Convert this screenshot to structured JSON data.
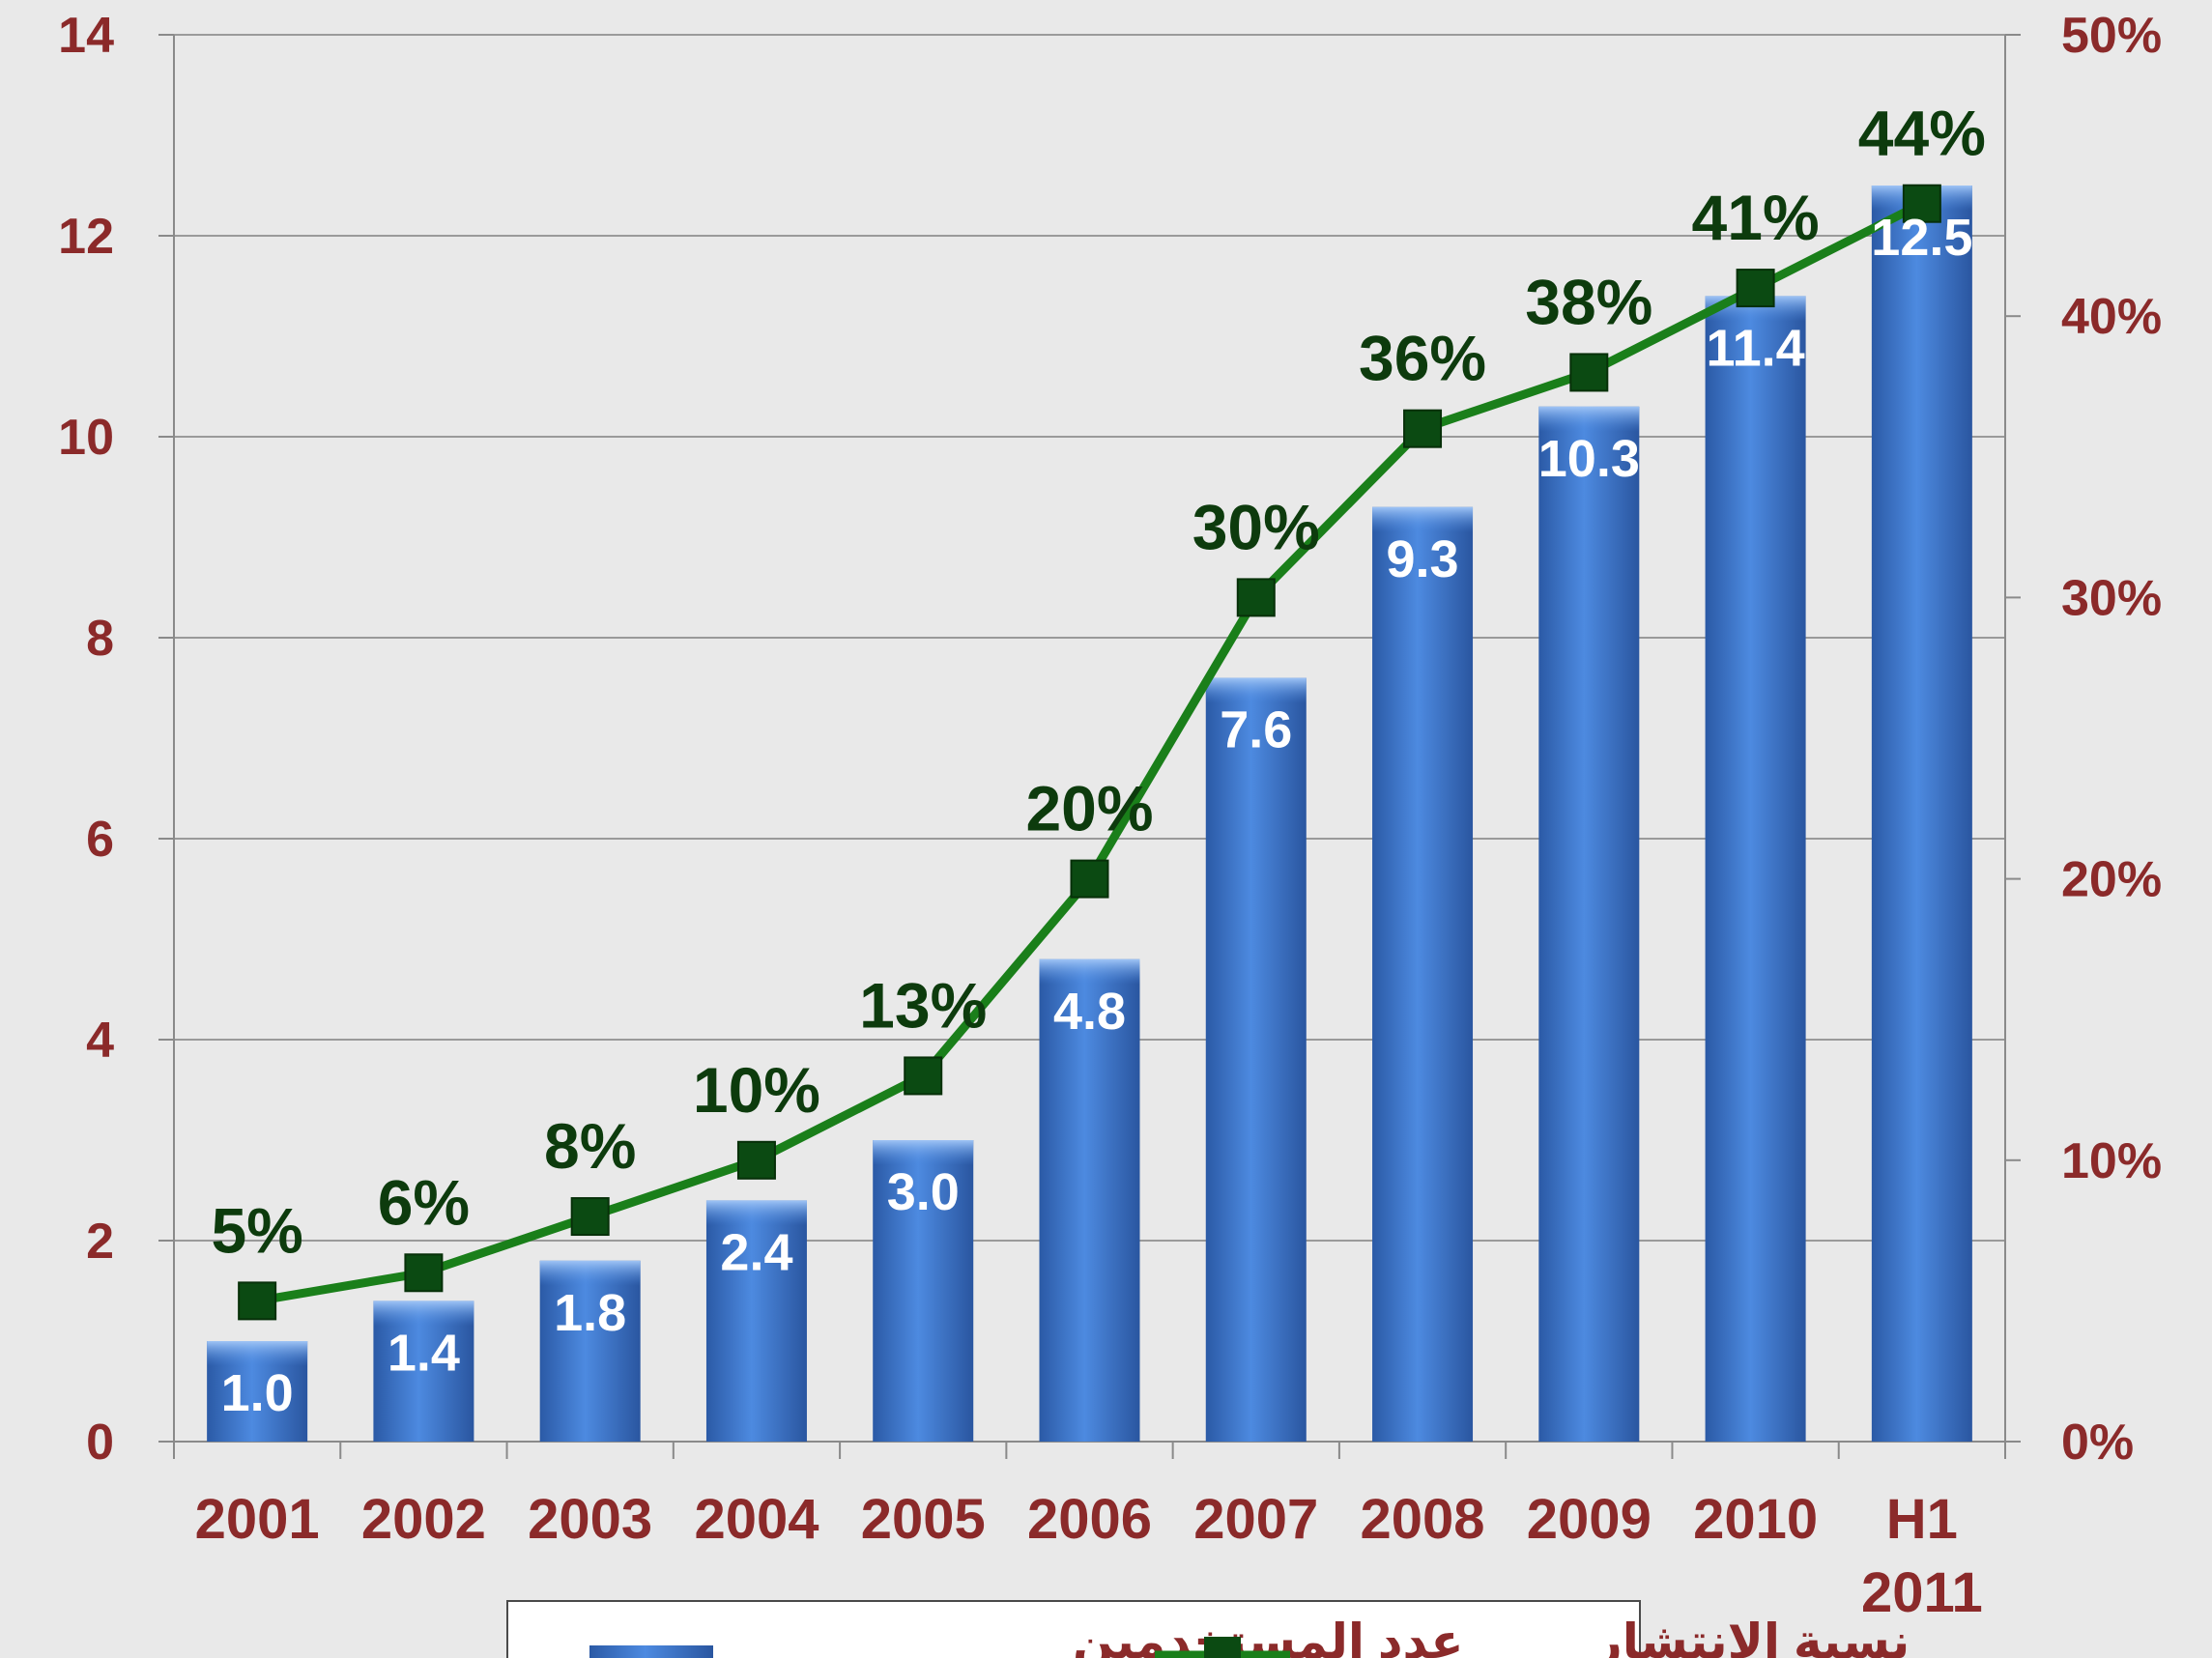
{
  "chart_data": {
    "type": "bar",
    "categories": [
      "2001",
      "2002",
      "2003",
      "2004",
      "2005",
      "2006",
      "2007",
      "2008",
      "2009",
      "2010",
      "H1\n2011"
    ],
    "series": [
      {
        "name": "عدد المستخدمين",
        "type": "bar",
        "axis": "left",
        "values": [
          1.0,
          1.4,
          1.8,
          2.4,
          3.0,
          4.8,
          7.6,
          9.3,
          10.3,
          11.4,
          12.5
        ],
        "labels": [
          "1.0",
          "1.4",
          "1.8",
          "2.4",
          "3.0",
          "4.8",
          "7.6",
          "9.3",
          "10.3",
          "11.4",
          "12.5"
        ],
        "color": "#3f78c9"
      },
      {
        "name": "نسبة الانتشار",
        "type": "line",
        "axis": "right",
        "values": [
          5,
          6,
          8,
          10,
          13,
          20,
          30,
          36,
          38,
          41,
          44
        ],
        "labels": [
          "5%",
          "6%",
          "8%",
          "10%",
          "13%",
          "20%",
          "30%",
          "36%",
          "38%",
          "41%",
          "44%"
        ],
        "color": "#1a7f1a"
      }
    ],
    "y_left": {
      "ylim": [
        0,
        14
      ],
      "ticks": [
        "0",
        "2",
        "4",
        "6",
        "8",
        "10",
        "12",
        "14"
      ]
    },
    "y_right": {
      "ylim": [
        0,
        50
      ],
      "ticks": [
        "0%",
        "10%",
        "20%",
        "30%",
        "40%",
        "50%"
      ]
    },
    "grid": true,
    "legend": {
      "placement": "bottom-center"
    }
  }
}
